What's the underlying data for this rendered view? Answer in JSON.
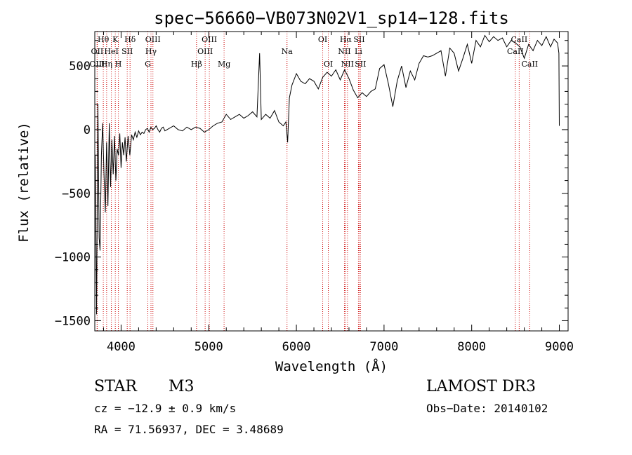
{
  "chart_data": {
    "type": "line",
    "title": "spec−56660−VB073N02V1_sp14−128.fits",
    "xlabel": "Wavelength (Å)",
    "ylabel": "Flux (relative)",
    "xlim": [
      3700,
      9100
    ],
    "ylim": [
      -1580,
      770
    ],
    "x_ticks": [
      4000,
      5000,
      6000,
      7000,
      8000,
      9000
    ],
    "y_ticks": [
      {
        "value": 500,
        "label": "500"
      },
      {
        "value": 0,
        "label": "0"
      },
      {
        "value": -500,
        "label": "−500"
      },
      {
        "value": -1000,
        "label": "−1000"
      },
      {
        "value": -1500,
        "label": "−1500"
      }
    ],
    "spectrum": {
      "name": "flux",
      "x": [
        3705,
        3720,
        3735,
        3750,
        3760,
        3775,
        3790,
        3805,
        3820,
        3835,
        3850,
        3865,
        3880,
        3895,
        3910,
        3925,
        3940,
        3955,
        3970,
        3985,
        4000,
        4015,
        4030,
        4045,
        4060,
        4080,
        4100,
        4120,
        4140,
        4160,
        4180,
        4200,
        4220,
        4240,
        4260,
        4280,
        4300,
        4320,
        4340,
        4360,
        4380,
        4400,
        4420,
        4440,
        4460,
        4480,
        4500,
        4550,
        4600,
        4650,
        4700,
        4750,
        4800,
        4850,
        4900,
        4950,
        5000,
        5050,
        5100,
        5150,
        5200,
        5250,
        5300,
        5350,
        5400,
        5450,
        5500,
        5550,
        5580,
        5600,
        5650,
        5700,
        5750,
        5800,
        5850,
        5880,
        5900,
        5920,
        5950,
        6000,
        6050,
        6100,
        6150,
        6200,
        6250,
        6300,
        6350,
        6400,
        6450,
        6500,
        6550,
        6600,
        6650,
        6700,
        6750,
        6800,
        6850,
        6900,
        6950,
        7000,
        7050,
        7100,
        7150,
        7200,
        7250,
        7300,
        7350,
        7400,
        7450,
        7500,
        7550,
        7600,
        7650,
        7700,
        7750,
        7800,
        7850,
        7900,
        7950,
        8000,
        8050,
        8100,
        8150,
        8200,
        8250,
        8300,
        8350,
        8400,
        8450,
        8500,
        8550,
        8600,
        8650,
        8700,
        8750,
        8800,
        8850,
        8900,
        8940,
        8980,
        8995,
        9000
      ],
      "y": [
        -200,
        -1450,
        200,
        -850,
        -950,
        -200,
        50,
        -350,
        -650,
        -100,
        -600,
        50,
        -450,
        -80,
        -350,
        -50,
        -400,
        -150,
        -200,
        -30,
        -300,
        -100,
        -200,
        -60,
        -250,
        -50,
        -200,
        -40,
        -80,
        -20,
        -60,
        -10,
        -40,
        -20,
        -30,
        0,
        10,
        -20,
        20,
        0,
        10,
        30,
        0,
        -20,
        10,
        20,
        -10,
        10,
        30,
        0,
        -10,
        20,
        0,
        20,
        10,
        -20,
        0,
        30,
        50,
        60,
        120,
        80,
        100,
        120,
        90,
        110,
        140,
        100,
        600,
        80,
        120,
        90,
        150,
        60,
        30,
        60,
        -100,
        250,
        350,
        440,
        380,
        360,
        400,
        380,
        320,
        410,
        450,
        420,
        470,
        390,
        470,
        400,
        310,
        250,
        290,
        260,
        300,
        320,
        480,
        510,
        360,
        180,
        380,
        500,
        330,
        460,
        390,
        520,
        580,
        570,
        580,
        600,
        620,
        420,
        640,
        600,
        460,
        560,
        670,
        520,
        700,
        650,
        740,
        690,
        730,
        700,
        720,
        650,
        700,
        680,
        650,
        560,
        670,
        620,
        700,
        660,
        730,
        650,
        710,
        680,
        600,
        30
      ]
    },
    "lines": [
      {
        "label": "Hθ",
        "x": 3797,
        "row": 0
      },
      {
        "label": "OII",
        "x": 3727,
        "row": 1
      },
      {
        "label": "OIII",
        "x": 3727,
        "row": 2
      },
      {
        "label": "Hη",
        "x": 3835,
        "row": 2
      },
      {
        "label": "HeI",
        "x": 3889,
        "row": 1
      },
      {
        "label": "K",
        "x": 3934,
        "row": 0
      },
      {
        "label": "SII",
        "x": 4070,
        "row": 1
      },
      {
        "label": "H",
        "x": 3969,
        "row": 2
      },
      {
        "label": "Hδ",
        "x": 4102,
        "row": 0
      },
      {
        "label": "OIII",
        "x": 4363,
        "row": 0
      },
      {
        "label": "Hγ",
        "x": 4341,
        "row": 1
      },
      {
        "label": "G",
        "x": 4305,
        "row": 2
      },
      {
        "label": "Hβ",
        "x": 4861,
        "row": 2
      },
      {
        "label": "OIII",
        "x": 5007,
        "row": 0
      },
      {
        "label": "OIII",
        "x": 4959,
        "row": 1
      },
      {
        "label": "Mg",
        "x": 5175,
        "row": 2
      },
      {
        "label": "Na",
        "x": 5893,
        "row": 1
      },
      {
        "label": "OI",
        "x": 6300,
        "row": 0
      },
      {
        "label": "OI",
        "x": 6364,
        "row": 2
      },
      {
        "label": "Hα",
        "x": 6563,
        "row": 0
      },
      {
        "label": "NII",
        "x": 6548,
        "row": 1
      },
      {
        "label": "NII",
        "x": 6583,
        "row": 2
      },
      {
        "label": "SII",
        "x": 6716,
        "row": 0
      },
      {
        "label": "Li",
        "x": 6708,
        "row": 1
      },
      {
        "label": "SII",
        "x": 6731,
        "row": 2
      },
      {
        "label": "CaII",
        "x": 8542,
        "row": 0
      },
      {
        "label": "CaII",
        "x": 8498,
        "row": 1
      },
      {
        "label": "CaII",
        "x": 8662,
        "row": 2
      }
    ]
  },
  "info": {
    "obj_class": "STAR",
    "subclass": "M3",
    "survey": "LAMOST DR3",
    "cz": "cz = −12.9 ± 0.9 km/s",
    "obs_date": "Obs−Date: 20140102",
    "radec": "RA =  71.56937, DEC =   3.48689"
  }
}
